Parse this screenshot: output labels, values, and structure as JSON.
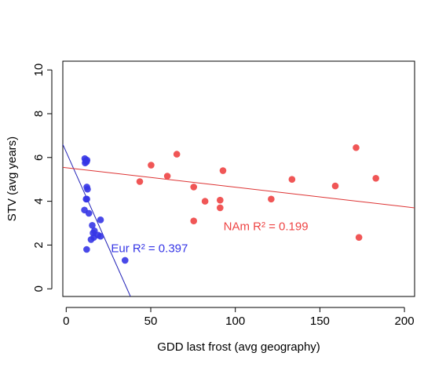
{
  "chart_data": {
    "type": "scatter",
    "title": "",
    "xlabel": "GDD last frost (avg geography)",
    "ylabel": "STV (avg years)",
    "xlim": [
      -2,
      206
    ],
    "ylim": [
      -0.35,
      10.4
    ],
    "xticks": [
      0,
      50,
      100,
      150,
      200
    ],
    "yticks": [
      0,
      2,
      4,
      6,
      8,
      10
    ],
    "grid": false,
    "series": [
      {
        "name": "Eur",
        "color": "#3535e6",
        "points": [
          {
            "x": 11,
            "y": 5.95
          },
          {
            "x": 11.5,
            "y": 5.85
          },
          {
            "x": 12,
            "y": 5.8
          },
          {
            "x": 11.2,
            "y": 5.75
          },
          {
            "x": 12.3,
            "y": 5.88
          },
          {
            "x": 12.2,
            "y": 4.65
          },
          {
            "x": 12.6,
            "y": 4.55
          },
          {
            "x": 11.8,
            "y": 4.1
          },
          {
            "x": 12.2,
            "y": 4.1
          },
          {
            "x": 10.8,
            "y": 3.6
          },
          {
            "x": 13.4,
            "y": 3.45
          },
          {
            "x": 20.3,
            "y": 3.15
          },
          {
            "x": 15.4,
            "y": 2.9
          },
          {
            "x": 16.7,
            "y": 2.65
          },
          {
            "x": 15.9,
            "y": 2.55
          },
          {
            "x": 18.9,
            "y": 2.45
          },
          {
            "x": 16.3,
            "y": 2.35
          },
          {
            "x": 14.7,
            "y": 2.25
          },
          {
            "x": 20.3,
            "y": 2.4
          },
          {
            "x": 12.1,
            "y": 1.8
          },
          {
            "x": 34.8,
            "y": 1.3
          }
        ]
      },
      {
        "name": "NAm",
        "color": "#ee4444",
        "points": [
          {
            "x": 43.5,
            "y": 4.9
          },
          {
            "x": 50.2,
            "y": 5.65
          },
          {
            "x": 59.8,
            "y": 5.15
          },
          {
            "x": 65.4,
            "y": 6.15
          },
          {
            "x": 75.4,
            "y": 4.65
          },
          {
            "x": 75.4,
            "y": 3.1
          },
          {
            "x": 82.1,
            "y": 4.0
          },
          {
            "x": 91.0,
            "y": 4.05
          },
          {
            "x": 91.0,
            "y": 3.7
          },
          {
            "x": 92.7,
            "y": 5.4
          },
          {
            "x": 121.2,
            "y": 4.1
          },
          {
            "x": 133.5,
            "y": 5.0
          },
          {
            "x": 159.1,
            "y": 4.7
          },
          {
            "x": 171.4,
            "y": 6.45
          },
          {
            "x": 173.1,
            "y": 2.35
          },
          {
            "x": 183.1,
            "y": 5.05
          }
        ]
      }
    ],
    "fit_lines": [
      {
        "name": "Eur",
        "color": "#2323b8",
        "x1": -2,
        "y1": 6.6,
        "x2": 38,
        "y2": -0.35
      },
      {
        "name": "NAm",
        "color": "#dd3333",
        "x1": -2,
        "y1": 5.55,
        "x2": 206,
        "y2": 3.7
      }
    ],
    "annotations": [
      {
        "text": "Eur R² =  0.397",
        "x": 26.5,
        "y": 1.85,
        "color": "#3535e6"
      },
      {
        "text": "NAm R² =  0.199",
        "x": 93,
        "y": 2.85,
        "color": "#ee4444"
      }
    ]
  }
}
